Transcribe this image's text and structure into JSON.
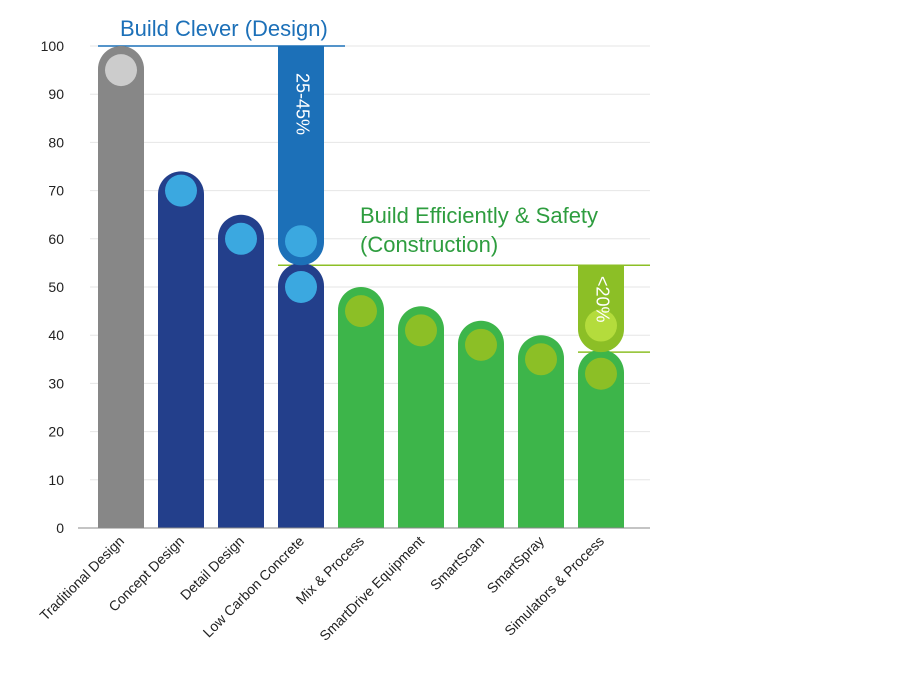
{
  "chart_data": {
    "type": "bar",
    "title": "",
    "xlabel": "",
    "ylabel": "",
    "ylim": [
      0,
      100
    ],
    "yticks": [
      0,
      10,
      20,
      30,
      40,
      50,
      60,
      70,
      80,
      90,
      100
    ],
    "grid": true,
    "categories": [
      "Traditional Design",
      "Concept Design",
      "Detail Design",
      "Low Carbon Concrete",
      "Mix & Process",
      "SmartDrive Equipment",
      "SmartScan",
      "SmartSpray",
      "Simulators & Process"
    ],
    "values": [
      100,
      74,
      65,
      55,
      50,
      46,
      43,
      40,
      37
    ],
    "marker_values": [
      95,
      70,
      60,
      50,
      45,
      41,
      38,
      35,
      32
    ],
    "groups": [
      "baseline",
      "design",
      "design",
      "design",
      "construction",
      "construction",
      "construction",
      "construction",
      "construction"
    ],
    "colors": {
      "baseline": "#878787",
      "baseline_marker": "#cccccc",
      "design": "#233f8b",
      "design_marker": "#3ba8e0",
      "construction": "#3db54a",
      "construction_marker": "#8cbf26",
      "design_range": "#1c70b8",
      "construction_range": "#8cbf26",
      "design_line": "#1c70b8",
      "construction_line": "#8cbf26",
      "design_text": "#1c70b8",
      "construction_text": "#2e9d3f"
    },
    "annotations": {
      "design_title": "Build Clever (Design)",
      "construction_title_line1": "Build Efficiently & Safety",
      "construction_title_line2": "(Construction)",
      "design_range_label": "25-45%",
      "design_range": {
        "top": 100,
        "bottom": 54.5,
        "marker": 59.5
      },
      "construction_range_label": "<20%",
      "construction_range": {
        "top": 54.5,
        "bottom": 36.5,
        "marker": 42
      }
    }
  }
}
